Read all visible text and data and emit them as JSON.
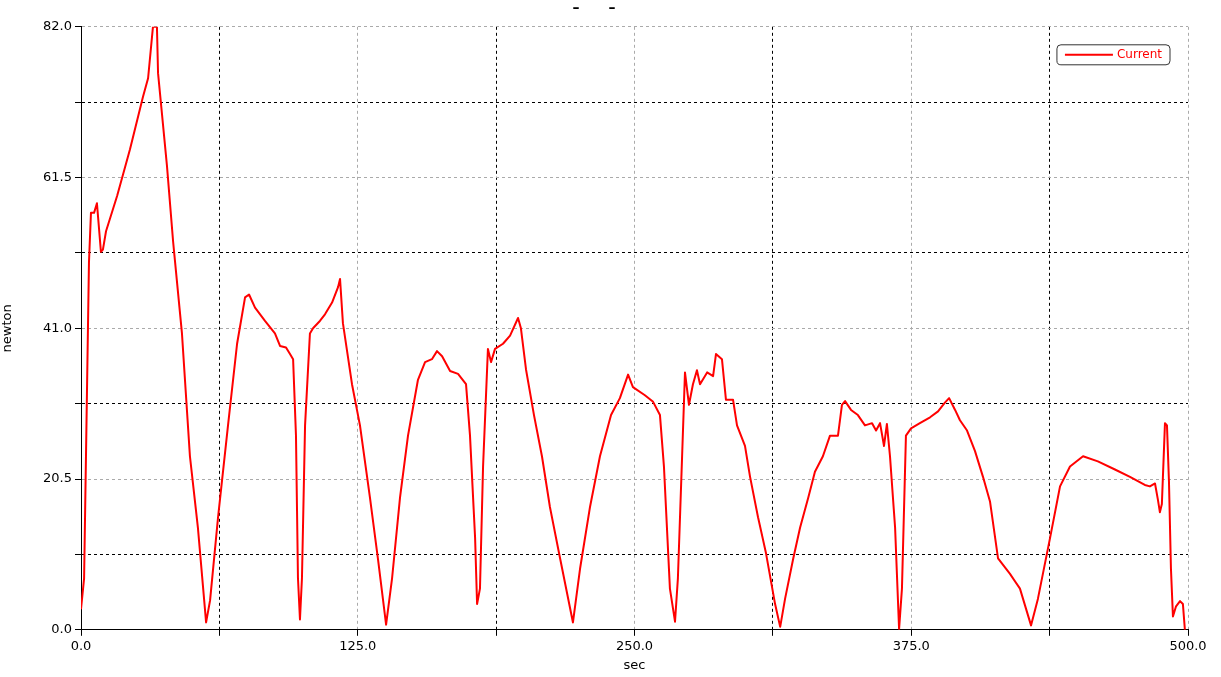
{
  "chart_data": {
    "type": "line",
    "title": "–      –",
    "xlabel": "sec",
    "ylabel": "newton",
    "xlim": [
      0,
      500
    ],
    "xticks": [
      {
        "value": 0,
        "label": "0.0"
      },
      {
        "value": 62.5,
        "label": null
      },
      {
        "value": 125,
        "label": "125.0"
      },
      {
        "value": 187.5,
        "label": null
      },
      {
        "value": 250,
        "label": "250.0"
      },
      {
        "value": 312.5,
        "label": null
      },
      {
        "value": 375,
        "label": "375.0"
      },
      {
        "value": 437.5,
        "label": null
      },
      {
        "value": 500,
        "label": "500.0"
      }
    ],
    "ylim": [
      0,
      82
    ],
    "yticks": [
      {
        "value": 0,
        "label": "0.0"
      },
      {
        "value": 10.25,
        "label": null
      },
      {
        "value": 20.5,
        "label": "20.5"
      },
      {
        "value": 30.75,
        "label": null
      },
      {
        "value": 41,
        "label": "41.0"
      },
      {
        "value": 51.25,
        "label": null
      },
      {
        "value": 61.5,
        "label": "61.5"
      },
      {
        "value": 71.75,
        "label": null
      },
      {
        "value": 82,
        "label": "82.0"
      }
    ],
    "grid": true,
    "legend": "top right",
    "marker": "none",
    "line_style": "solid",
    "series": [
      {
        "name": "Current",
        "color": "#ff0000",
        "x": [
          0,
          1.4,
          3.6,
          4.5,
          5.9,
          7.2,
          9.0,
          9.9,
          11.3,
          16.3,
          22.1,
          28,
          30.3,
          32.5,
          34.3,
          34.8,
          38.8,
          41.6,
          45.6,
          49.2,
          52.8,
          56.5,
          58.3,
          61.9,
          66.4,
          70.5,
          74.1,
          75.9,
          78.6,
          83.1,
          87.6,
          89.9,
          92.6,
          94.4,
          95.8,
          97.1,
          98,
          98.9,
          99.8,
          101.2,
          103.4,
          104.8,
          107.9,
          110.2,
          113.4,
          116.1,
          117,
          118.3,
          122.4,
          126,
          130.5,
          134.1,
          137.8,
          140.5,
          144.1,
          147.7,
          152.2,
          155.4,
          158.5,
          160.8,
          163.1,
          166.7,
          170.3,
          173.9,
          175.7,
          178,
          178.9,
          180.2,
          181.6,
          183.8,
          185.2,
          187,
          190.6,
          193.8,
          197.4,
          198.7,
          201,
          204.6,
          208.2,
          211.8,
          216.4,
          222.2,
          225.4,
          229.9,
          234.4,
          239.4,
          243.4,
          247.1,
          249.3,
          254.7,
          258.4,
          261.5,
          263.3,
          266,
          268.3,
          269.6,
          271.5,
          272.8,
          274.6,
          276.4,
          278.2,
          279.6,
          282.8,
          285.5,
          286.8,
          289.5,
          291.3,
          294.5,
          296.3,
          299.9,
          302.2,
          305.8,
          309.4,
          313.5,
          315.8,
          318,
          321.7,
          324.8,
          328.5,
          331.5,
          335.1,
          338.3,
          341.9,
          343.7,
          345.1,
          347.8,
          350.9,
          354.1,
          357.3,
          359.1,
          360.9,
          362.7,
          364,
          365.4,
          367.7,
          369.5,
          370.8,
          372.6,
          374.9,
          378.9,
          383.5,
          387.1,
          390.2,
          392.1,
          394.8,
          397,
          400.2,
          403.8,
          407.4,
          410.6,
          414.2,
          419.6,
          424.1,
          429.1,
          432.2,
          437.7,
          442.2,
          446.7,
          452.6,
          459.3,
          467,
          473.8,
          480.5,
          482.8,
          485.1,
          486.4,
          487.3,
          488.2,
          489.6,
          490.5,
          491.4,
          492.3,
          493.2,
          494.6,
          496.4,
          497.7,
          498.6
        ],
        "values": [
          2.8,
          7,
          50,
          56.7,
          56.7,
          58,
          51.4,
          51.7,
          54.2,
          59,
          65.3,
          72.5,
          75,
          82,
          82,
          75.7,
          63.2,
          52.8,
          40.3,
          23.6,
          13.9,
          1,
          4,
          15.3,
          27.8,
          38.9,
          45.2,
          45.6,
          43.8,
          42,
          40.3,
          38.6,
          38.4,
          37.5,
          36.8,
          26.4,
          7,
          1.4,
          7,
          27.8,
          40.3,
          41,
          42,
          42.9,
          44.5,
          46.6,
          47.7,
          41.7,
          33.4,
          27.8,
          18,
          9.7,
          0.7,
          7,
          18,
          26.4,
          34,
          36.4,
          36.8,
          37.9,
          37.2,
          35.2,
          34.8,
          33.4,
          26.4,
          12.5,
          3.5,
          5.6,
          22.2,
          38.2,
          36.4,
          38.2,
          38.9,
          40,
          42.4,
          41,
          35.4,
          29.2,
          23.6,
          16.7,
          9.7,
          1,
          8.3,
          16.7,
          23.6,
          29.2,
          31.5,
          34.7,
          33,
          31.9,
          31,
          29.2,
          22.2,
          5.6,
          1.1,
          7,
          23.6,
          35,
          30.6,
          33.4,
          35.3,
          33.4,
          35,
          34.5,
          37.5,
          36.8,
          31.3,
          31.3,
          27.8,
          25,
          20.8,
          15.3,
          10.4,
          3.5,
          0.4,
          4.2,
          9.7,
          13.9,
          18,
          21.5,
          23.6,
          26.4,
          26.4,
          30.6,
          31.1,
          29.9,
          29.2,
          27.8,
          28.1,
          27.1,
          28.1,
          25,
          28,
          23.6,
          13.9,
          0.1,
          5.6,
          26.4,
          27.4,
          28.1,
          28.9,
          29.7,
          30.9,
          31.5,
          29.9,
          28.5,
          27.1,
          24.3,
          20.8,
          17.4,
          9.7,
          7.6,
          5.6,
          0.6,
          4.2,
          12.5,
          19.5,
          22.2,
          23.6,
          22.9,
          21.8,
          20.8,
          19.7,
          19.5,
          19.9,
          17.7,
          16,
          17.1,
          28.1,
          27.8,
          20.2,
          8.3,
          1.8,
          3.2,
          3.9,
          3.5,
          0
        ]
      }
    ]
  }
}
